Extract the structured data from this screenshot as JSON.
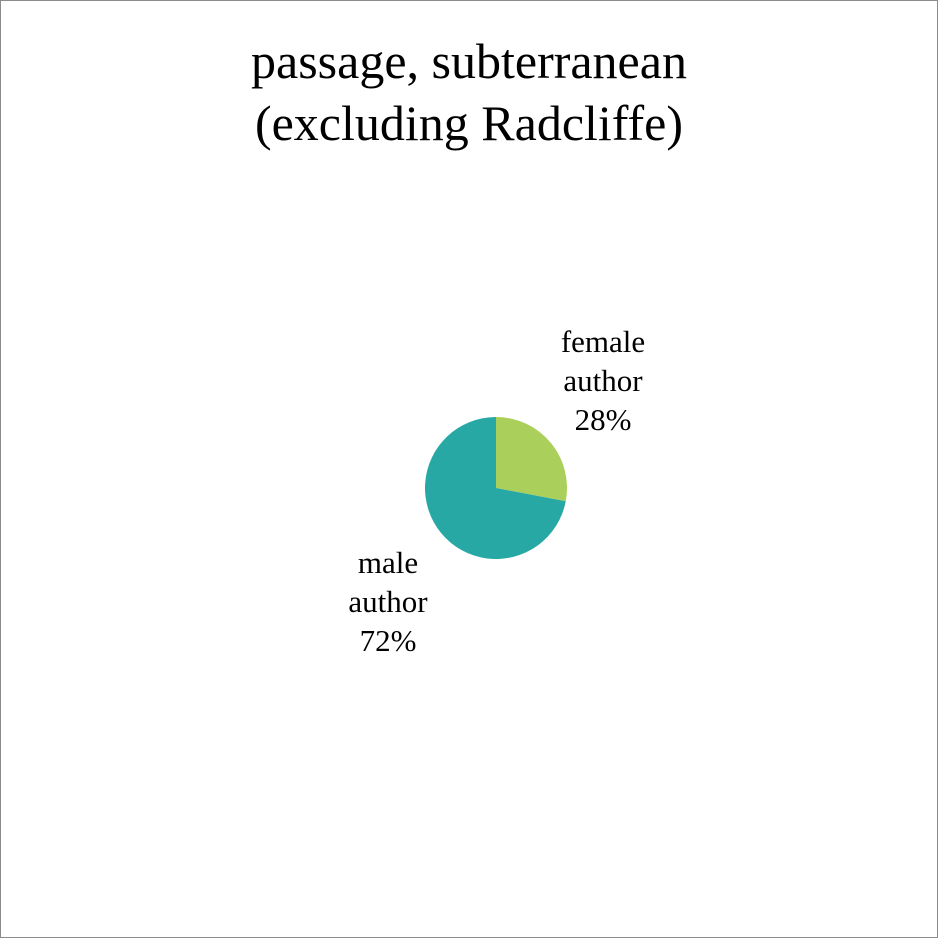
{
  "chart_data": {
    "type": "pie",
    "title": [
      "passage, subterranean",
      "(excluding Radcliffe)"
    ],
    "slices": [
      {
        "label": [
          "female",
          "author"
        ],
        "percent_text": "28%",
        "value": 28,
        "color": "#aacf5b"
      },
      {
        "label": [
          "male",
          "author"
        ],
        "percent_text": "72%",
        "value": 72,
        "color": "#27a8a4"
      }
    ],
    "legend": "none",
    "grid": false
  }
}
